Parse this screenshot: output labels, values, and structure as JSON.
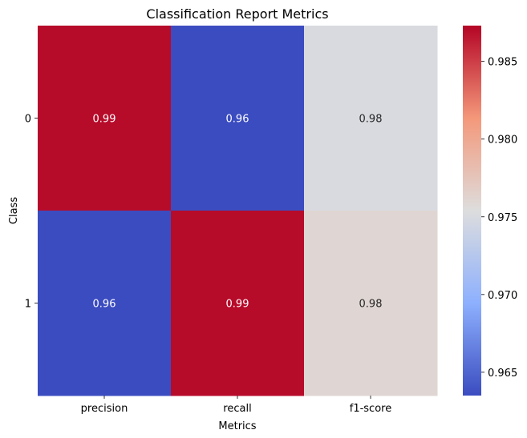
{
  "chart_data": {
    "type": "heatmap",
    "title": "Classification Report Metrics",
    "xlabel": "Metrics",
    "ylabel": "Class",
    "x_categories": [
      "precision",
      "recall",
      "f1-score"
    ],
    "y_categories": [
      "0",
      "1"
    ],
    "values": [
      [
        0.987,
        0.963,
        0.975
      ],
      [
        0.963,
        0.987,
        0.976
      ]
    ],
    "annotations": [
      [
        "0.99",
        "0.96",
        "0.98"
      ],
      [
        "0.96",
        "0.99",
        "0.98"
      ]
    ],
    "colormap": "coolwarm",
    "colorbar": {
      "vmin": 0.9635,
      "vmax": 0.9873,
      "ticks": [
        0.965,
        0.97,
        0.975,
        0.98,
        0.985
      ],
      "tick_labels": [
        "0.965",
        "0.970",
        "0.975",
        "0.980",
        "0.985"
      ]
    },
    "grid": false,
    "legend": "none"
  }
}
